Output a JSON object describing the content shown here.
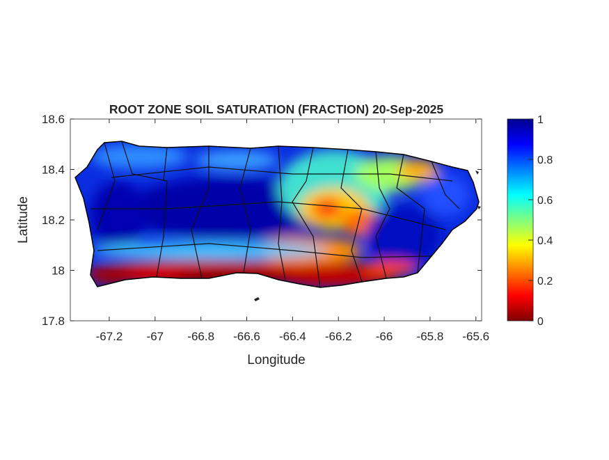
{
  "title": "ROOT ZONE SOIL SATURATION (FRACTION) 20-Sep-2025",
  "xlabel": "Longitude",
  "ylabel": "Latitude",
  "xticks": [
    "-67.2",
    "-67",
    "-66.8",
    "-66.6",
    "-66.4",
    "-66.2",
    "-66",
    "-65.8",
    "-65.6"
  ],
  "yticks": [
    "18.6",
    "18.4",
    "18.2",
    "18",
    "17.8"
  ],
  "xlim": [
    -67.37,
    -65.575
  ],
  "ylim": [
    17.8,
    18.6
  ],
  "colorbar": {
    "ticks": [
      "1",
      "0.8",
      "0.6",
      "0.4",
      "0.2",
      "0"
    ],
    "range": [
      0,
      1
    ],
    "colormap": "jet"
  },
  "colors": {
    "wet": "#00008f",
    "dry": "#800000"
  }
}
